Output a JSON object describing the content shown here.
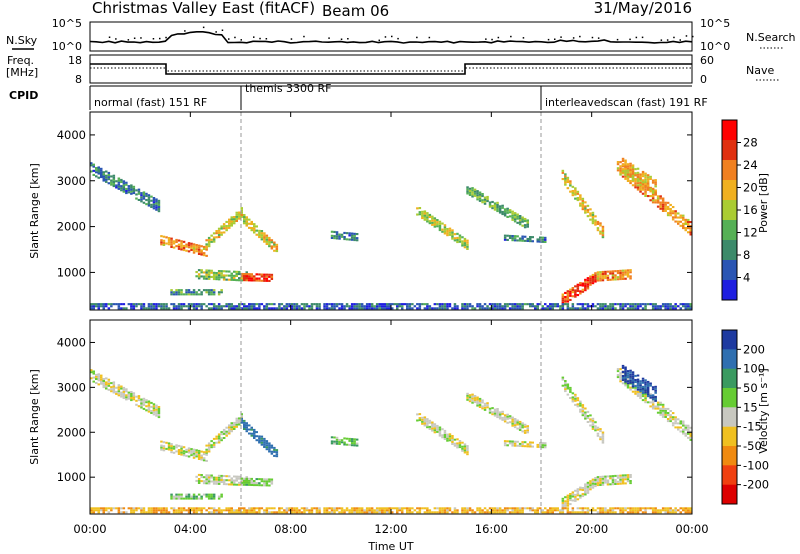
{
  "header": {
    "title": "Christmas Valley East (fitACF)",
    "beam": "Beam 06",
    "date": "31/May/2016"
  },
  "noise_panel": {
    "left_label": "N.Sky",
    "right_label": "N.Search",
    "left_ticks": [
      "10^5",
      "10^0"
    ],
    "right_ticks": [
      "10^5",
      "10^0"
    ]
  },
  "freq_panel": {
    "left_label_line1": "Freq.",
    "left_label_line2": "[MHz]",
    "right_label": "Nave",
    "left_ticks": [
      "18",
      "8"
    ],
    "right_ticks": [
      "60",
      "0"
    ]
  },
  "cpid": {
    "label": "CPID",
    "modes": [
      {
        "name": "normal (fast) 151 RF",
        "start_h": 0,
        "end_h": 6
      },
      {
        "name": "themis 3300 RF",
        "start_h": 6,
        "end_h": 18
      },
      {
        "name": "interleavedscan (fast) 191 RF",
        "start_h": 18,
        "end_h": 24
      }
    ]
  },
  "x_axis": {
    "label": "Time UT",
    "ticks": [
      "00:00",
      "04:00",
      "08:00",
      "12:00",
      "16:00",
      "20:00",
      "00:00"
    ]
  },
  "power_panel": {
    "ylabel": "Slant Range [km]",
    "yticks": [
      "1000",
      "2000",
      "3000",
      "4000"
    ],
    "colorbar_label": "Power [dB]",
    "colorbar_ticks": [
      "4",
      "8",
      "12",
      "16",
      "20",
      "24",
      "28"
    ],
    "colors": [
      "#1f1fe0",
      "#2a55b3",
      "#3c8a6a",
      "#55b055",
      "#aacc33",
      "#f0b020",
      "#f08020",
      "#e03010",
      "#ff0000"
    ]
  },
  "velocity_panel": {
    "ylabel": "Slant Range [km]",
    "yticks": [
      "1000",
      "2000",
      "3000",
      "4000"
    ],
    "colorbar_label": "Velocity [m s⁻¹]",
    "colorbar_ticks": [
      "200",
      "100",
      "50",
      "15",
      "-15",
      "-50",
      "-100",
      "-200"
    ],
    "colors": [
      "#1e3aa0",
      "#2f6fb0",
      "#3a9a60",
      "#66cc33",
      "#c8c8c0",
      "#f0c020",
      "#f08a10",
      "#f04010",
      "#dd0000"
    ]
  },
  "chart_data": {
    "type": "heatmap",
    "x_range_h": [
      0,
      24
    ],
    "y_range_km": [
      180,
      4500
    ],
    "vertical_markers_h": [
      6,
      18
    ],
    "echo_regions": [
      {
        "t0": 0.0,
        "t1": 2.8,
        "r0": 3250,
        "r1": 2400,
        "th": 230,
        "pwr": 8,
        "vel": 0
      },
      {
        "t0": 2.8,
        "t1": 4.6,
        "r0": 1700,
        "r1": 1450,
        "th": 220,
        "pwr": 22,
        "vel": 0
      },
      {
        "t0": 4.6,
        "t1": 6.0,
        "r0": 1600,
        "r1": 2300,
        "th": 200,
        "pwr": 18,
        "vel": 0
      },
      {
        "t0": 6.0,
        "t1": 7.4,
        "r0": 2200,
        "r1": 1500,
        "th": 200,
        "pwr": 18,
        "vel": 120
      },
      {
        "t0": 4.2,
        "t1": 6.2,
        "r0": 950,
        "r1": 900,
        "th": 200,
        "pwr": 14,
        "vel": 0
      },
      {
        "t0": 6.0,
        "t1": 7.2,
        "r0": 880,
        "r1": 860,
        "th": 140,
        "pwr": 27,
        "vel": 30
      },
      {
        "t0": 3.2,
        "t1": 5.2,
        "r0": 560,
        "r1": 560,
        "th": 120,
        "pwr": 10,
        "vel": 30
      },
      {
        "t0": 13.0,
        "t1": 15.0,
        "r0": 2350,
        "r1": 1600,
        "th": 220,
        "pwr": 16,
        "vel": 0
      },
      {
        "t0": 15.0,
        "t1": 17.5,
        "r0": 2800,
        "r1": 2000,
        "th": 200,
        "pwr": 12,
        "vel": 0
      },
      {
        "t0": 18.8,
        "t1": 20.5,
        "r0": 3100,
        "r1": 1800,
        "th": 260,
        "pwr": 18,
        "vel": 0
      },
      {
        "t0": 21.0,
        "t1": 24.0,
        "r0": 3300,
        "r1": 1900,
        "th": 280,
        "pwr": 22,
        "vel": 0
      },
      {
        "t0": 21.2,
        "t1": 22.6,
        "r0": 3300,
        "r1": 2800,
        "th": 320,
        "pwr": 20,
        "vel": 200
      },
      {
        "t0": 18.8,
        "t1": 20.2,
        "r0": 400,
        "r1": 900,
        "th": 260,
        "pwr": 26,
        "vel": 0
      },
      {
        "t0": 20.2,
        "t1": 21.6,
        "r0": 900,
        "r1": 950,
        "th": 200,
        "pwr": 22,
        "vel": 0
      },
      {
        "t0": 9.6,
        "t1": 10.6,
        "r0": 1800,
        "r1": 1750,
        "th": 140,
        "pwr": 8,
        "vel": 40
      },
      {
        "t0": 16.5,
        "t1": 18.2,
        "r0": 1750,
        "r1": 1700,
        "th": 120,
        "pwr": 8,
        "vel": 0
      },
      {
        "t0": 0.0,
        "t1": 24.0,
        "r0": 250,
        "r1": 250,
        "th": 110,
        "pwr": 6,
        "vel": -40
      }
    ]
  }
}
